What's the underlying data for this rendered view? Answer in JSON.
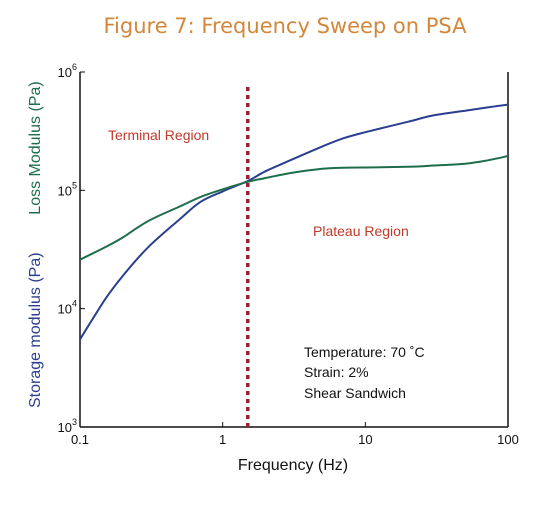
{
  "chart_data": {
    "type": "line",
    "title": "Figure 7: Frequency Sweep on PSA",
    "xlabel": "Frequency (Hz)",
    "ylabel_storage": "Storage modulus (Pa)",
    "ylabel_loss": "Loss Modulus (Pa)",
    "x_scale": "log",
    "y_scale": "log",
    "xlim": [
      0.1,
      100
    ],
    "ylim": [
      1000,
      1000000
    ],
    "x_ticks": [
      {
        "value": 0.1,
        "label": "0.1"
      },
      {
        "value": 1,
        "label": "1"
      },
      {
        "value": 10,
        "label": "10"
      },
      {
        "value": 100,
        "label": "100"
      }
    ],
    "y_ticks": [
      {
        "value": 1000,
        "base": "10",
        "exp": "3"
      },
      {
        "value": 10000,
        "base": "10",
        "exp": "4"
      },
      {
        "value": 100000,
        "base": "10",
        "exp": "5"
      },
      {
        "value": 1000000,
        "base": "10",
        "exp": "6"
      }
    ],
    "series": [
      {
        "name": "Storage modulus (Pa)",
        "color": "#2a3f8f",
        "x": [
          0.1,
          0.15,
          0.2,
          0.3,
          0.5,
          0.7,
          1.0,
          1.5,
          2.0,
          3.0,
          5.0,
          7.0,
          10,
          20,
          30,
          50,
          70,
          100
        ],
        "y": [
          5500,
          12000,
          19000,
          33000,
          57000,
          80000,
          98000,
          120000,
          145000,
          180000,
          235000,
          275000,
          310000,
          380000,
          430000,
          470000,
          500000,
          530000
        ]
      },
      {
        "name": "Loss Modulus (Pa)",
        "color": "#1f6e4b",
        "x": [
          0.1,
          0.15,
          0.2,
          0.3,
          0.5,
          0.7,
          1.0,
          1.5,
          2.0,
          3.0,
          5.0,
          7.0,
          10,
          20,
          30,
          50,
          70,
          100
        ],
        "y": [
          26000,
          33000,
          40000,
          55000,
          73000,
          88000,
          102000,
          118000,
          127000,
          140000,
          152000,
          155000,
          156000,
          158000,
          162000,
          168000,
          178000,
          195000
        ]
      }
    ],
    "divider": {
      "x": 1.5,
      "color": "#9e1b32",
      "style": "dotted"
    },
    "annotations": [
      {
        "text": "Terminal Region",
        "color": "#c0392b"
      },
      {
        "text": "Plateau Region",
        "color": "#c0392b"
      }
    ],
    "info_lines": [
      "Temperature: 70 ˚C",
      "Strain: 2%",
      "Shear Sandwich"
    ]
  }
}
